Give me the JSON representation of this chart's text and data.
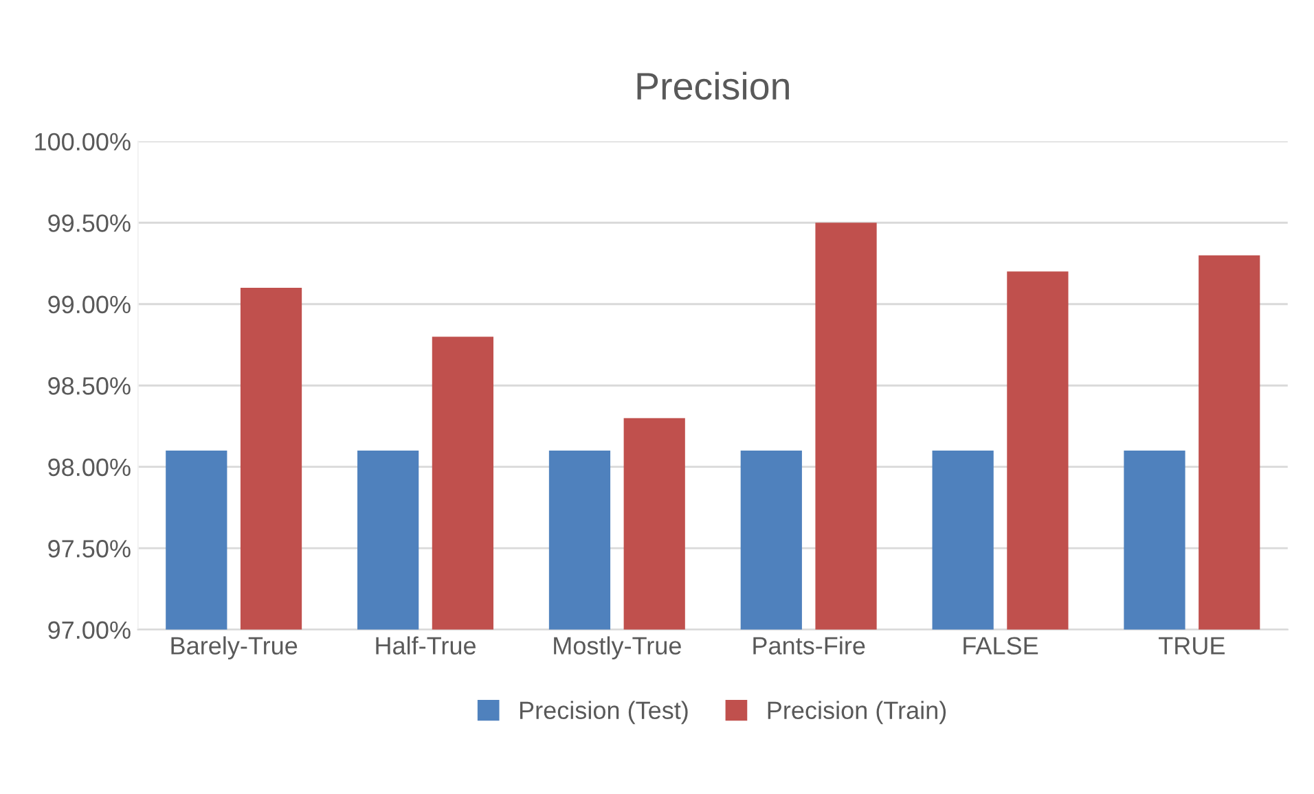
{
  "chart_data": {
    "type": "bar",
    "title": "Precision",
    "categories": [
      "Barely-True",
      "Half-True",
      "Mostly-True",
      "Pants-Fire",
      "FALSE",
      "TRUE"
    ],
    "series": [
      {
        "name": "Precision (Test)",
        "color": "#4f81bd",
        "values": [
          98.1,
          98.1,
          98.1,
          98.1,
          98.1,
          98.1
        ]
      },
      {
        "name": "Precision (Train)",
        "color": "#c0504d",
        "values": [
          99.1,
          98.8,
          98.3,
          99.5,
          99.2,
          99.3
        ]
      }
    ],
    "ylim": [
      97,
      100
    ],
    "yticks": [
      {
        "value": 97,
        "label": "97.00%"
      },
      {
        "value": 97.5,
        "label": "97.50%"
      },
      {
        "value": 98,
        "label": "98.00%"
      },
      {
        "value": 98.5,
        "label": "98.50%"
      },
      {
        "value": 99,
        "label": "99.00%"
      },
      {
        "value": 99.5,
        "label": "99.50%"
      },
      {
        "value": 100,
        "label": "100.00%"
      }
    ],
    "grid": "y",
    "legend": "bottom"
  }
}
